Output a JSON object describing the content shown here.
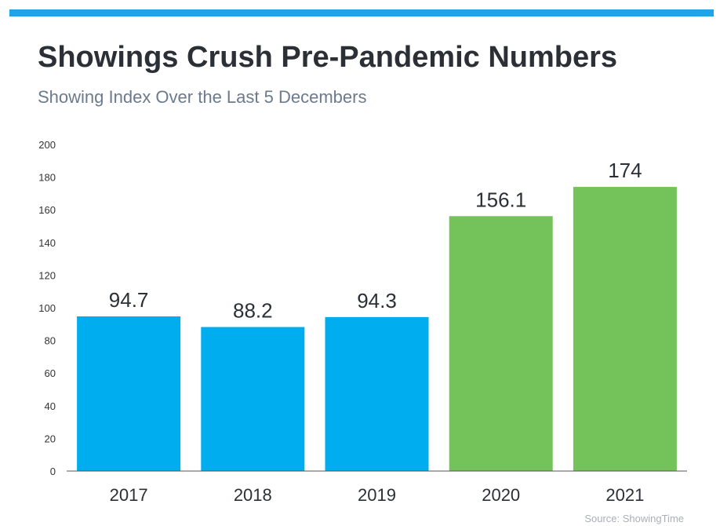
{
  "header": {
    "title": "Showings Crush Pre-Pandemic Numbers",
    "subtitle": "Showing Index Over the Last 5 Decembers"
  },
  "footer": {
    "source": "Source: ShowingTime"
  },
  "colors": {
    "accent_bar": "#1ea5e9",
    "pre_pandemic_bar": "#00aeef",
    "pandemic_bar": "#74c35a",
    "axis": "#555555",
    "text": "#2b2f36"
  },
  "chart_data": {
    "type": "bar",
    "categories": [
      "2017",
      "2018",
      "2019",
      "2020",
      "2021"
    ],
    "values": [
      94.7,
      88.2,
      94.3,
      156.1,
      174
    ],
    "value_labels": [
      "94.7",
      "88.2",
      "94.3",
      "156.1",
      "174"
    ],
    "bar_colors": [
      "#00aeef",
      "#00aeef",
      "#00aeef",
      "#74c35a",
      "#74c35a"
    ],
    "ylim": [
      0,
      200
    ],
    "yticks": [
      0,
      20,
      40,
      60,
      80,
      100,
      120,
      140,
      160,
      180,
      200
    ],
    "grid": false,
    "xlabel": "",
    "ylabel": ""
  }
}
